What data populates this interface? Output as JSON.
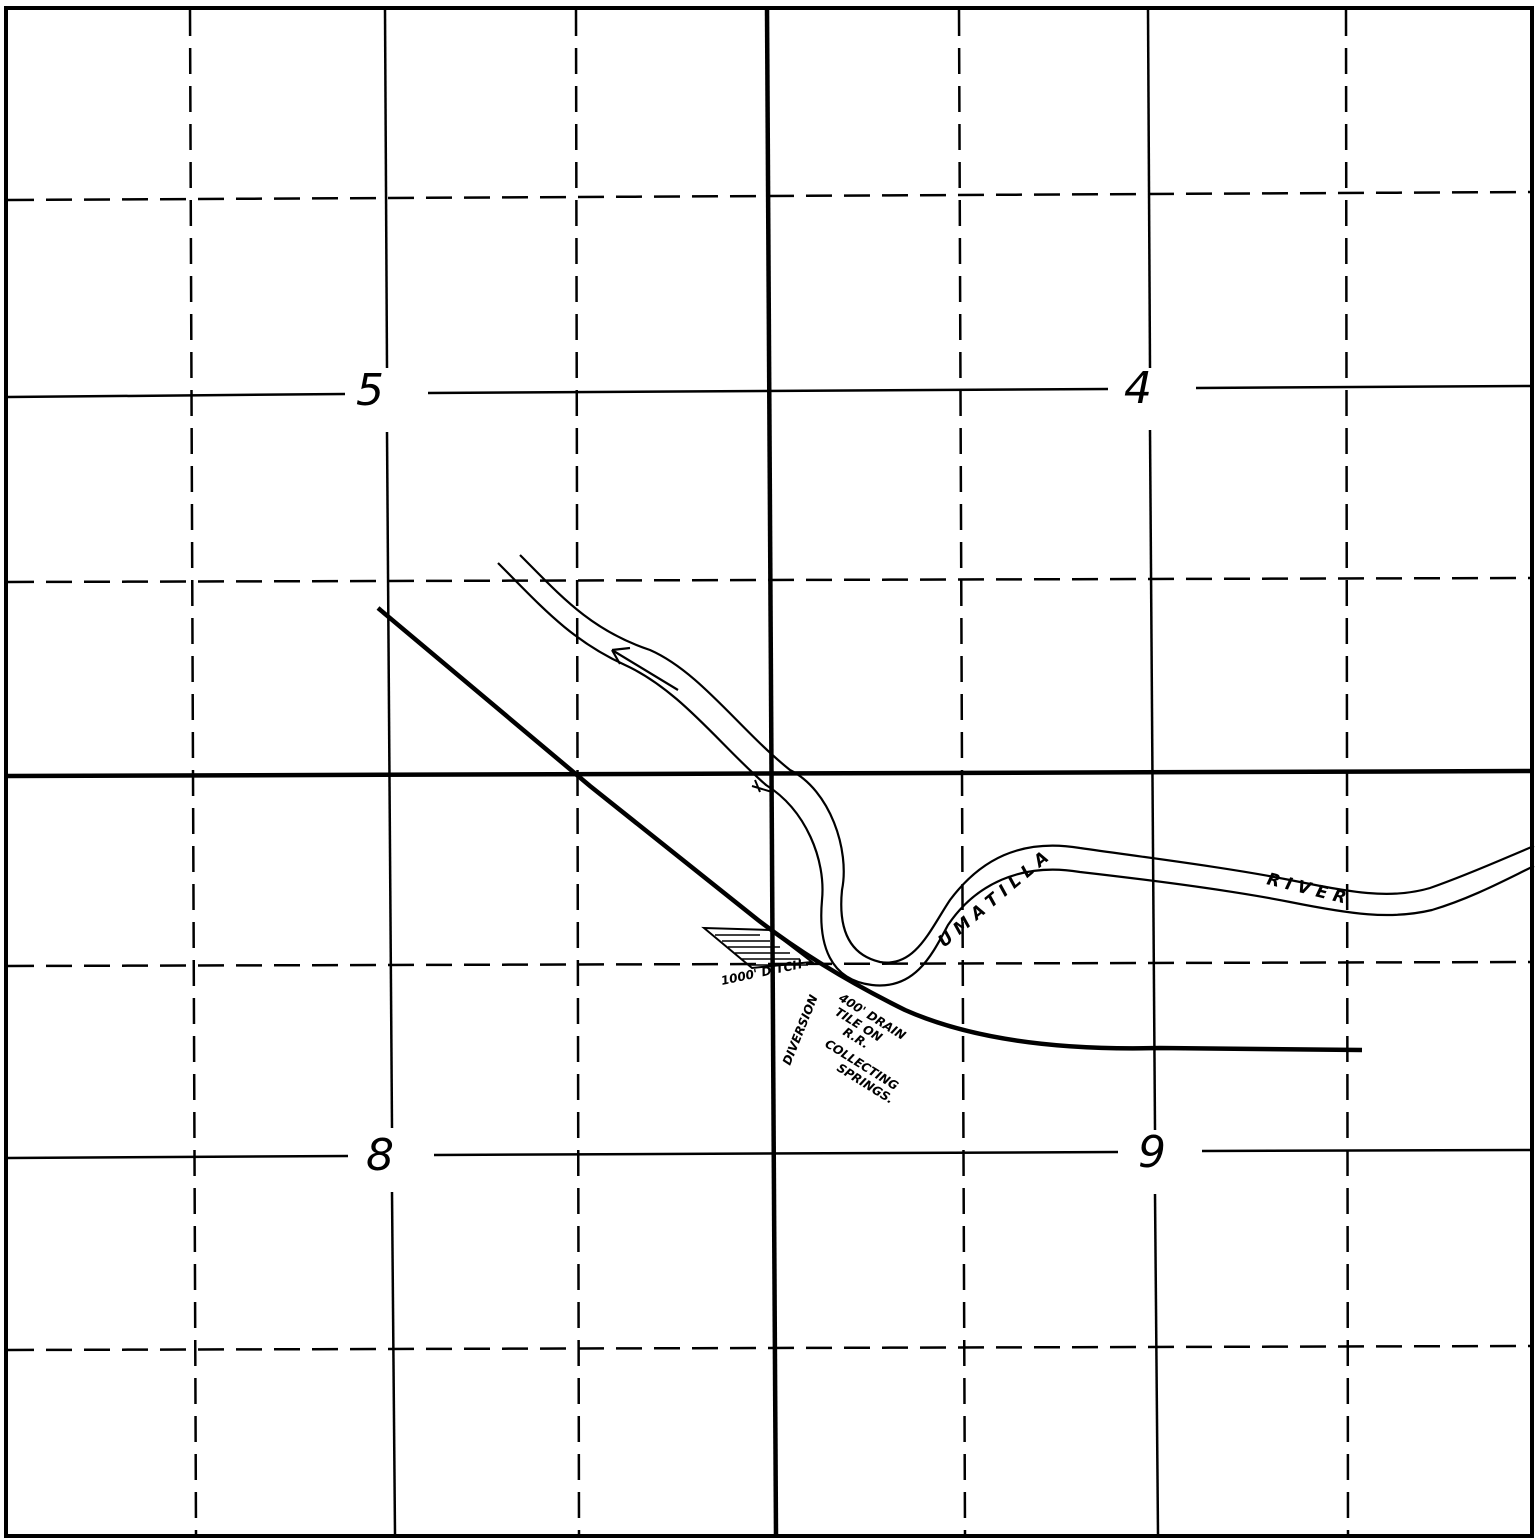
{
  "sections": {
    "nw": "5",
    "ne": "4",
    "sw": "8",
    "se": "9"
  },
  "river": {
    "name_part1": "U M A T I L L A",
    "name_part2": "R I V E R"
  },
  "annotations": {
    "ditch": "1000' DITCH",
    "diversion": "DIVERSION",
    "drain_line1": "400' DRAIN",
    "drain_line2": "TILE ON",
    "drain_line3": "R.R.",
    "drain_line4": "COLLECTING",
    "drain_line5": "SPRINGS."
  },
  "colors": {
    "ink": "#000000",
    "paper": "#ffffff"
  }
}
